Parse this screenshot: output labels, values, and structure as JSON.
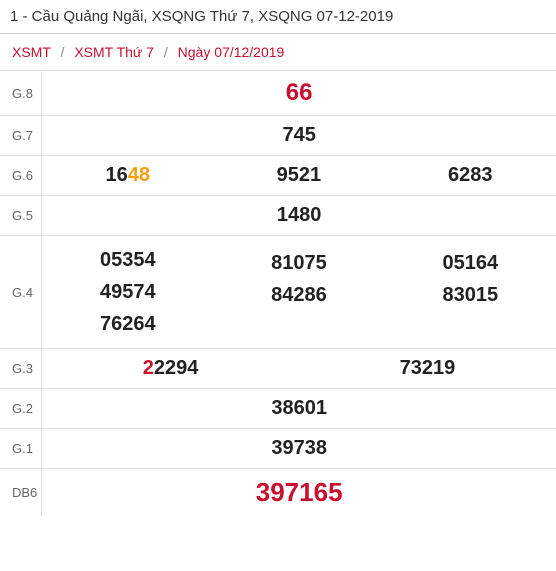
{
  "title": "1 - Cầu Quảng Ngãi, XSQNG Thứ 7, XSQNG 07-12-2019",
  "breadcrumb": {
    "a": "XSMT",
    "b": "XSMT Thứ 7",
    "c": "Ngày 07/12/2019"
  },
  "labels": {
    "g8": "G.8",
    "g7": "G.7",
    "g6": "G.6",
    "g5": "G.5",
    "g4": "G.4",
    "g3": "G.3",
    "g2": "G.2",
    "g1": "G.1",
    "db": "DB6"
  },
  "g8": "66",
  "g7": "745",
  "g6": {
    "a_prefix": "16",
    "a_suffix": "48",
    "b": "9521",
    "c": "6283"
  },
  "g5": "1480",
  "g4": {
    "c1a": "05354",
    "c1b": "49574",
    "c1c": "76264",
    "c2a": "81075",
    "c2b": "84286",
    "c3a": "05164",
    "c3b": "83015"
  },
  "g3": {
    "a_prefix": "2",
    "a_suffix": "2294",
    "b": "73219"
  },
  "g2": "38601",
  "g1": "39738",
  "db": "397165",
  "colors": {
    "accent_red": "#c8102e",
    "highlight_orange": "#f59e0b",
    "text": "#222222",
    "muted": "#666666",
    "border": "#e0e0e0"
  },
  "fonts": {
    "num_size": 20,
    "g8_size": 24,
    "db_size": 26,
    "label_size": 13
  }
}
